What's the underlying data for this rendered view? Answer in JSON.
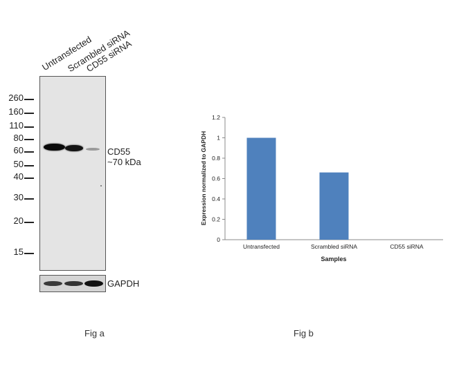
{
  "fig_a": {
    "lanes": [
      "Untransfected",
      "Scrambled siRNA",
      "CD55 siRNA"
    ],
    "markers": [
      "260",
      "160",
      "110",
      "80",
      "60",
      "50",
      "40",
      "30",
      "20",
      "15"
    ],
    "band_label_1": "CD55",
    "band_label_2": "~70 kDa",
    "loading_control": "GAPDH",
    "caption": "Fig a"
  },
  "fig_b": {
    "caption": "Fig b"
  },
  "chart_data": {
    "type": "bar",
    "categories": [
      "Untransfected",
      "Scrambled siRNA",
      "CD55 siRNA"
    ],
    "values": [
      1.0,
      0.66,
      0.0
    ],
    "title": "",
    "xlabel": "Samples",
    "ylabel": "Expression normalized to GAPDH",
    "ylim": [
      0,
      1.2
    ],
    "yticks": [
      "0",
      "0.2",
      "0.4",
      "0.6",
      "0.8",
      "1",
      "1.2"
    ],
    "bar_color": "#4f81bd",
    "grid": false
  }
}
